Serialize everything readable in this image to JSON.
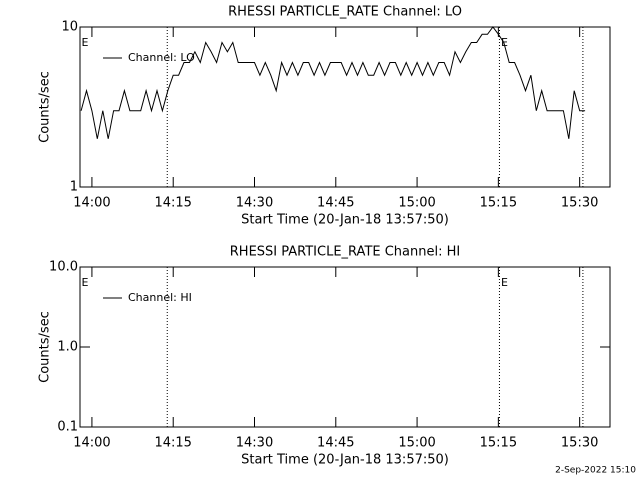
{
  "chart_data": [
    {
      "type": "line",
      "title": "RHESSI PARTICLE_RATE Channel: LO",
      "x_label": "Start Time (20-Jan-18 13:57:50)",
      "y_label": "Counts/sec",
      "xlim": [
        837.8,
        935.6
      ],
      "xticks": [
        {
          "value": 840,
          "label": "14:00"
        },
        {
          "value": 855,
          "label": "14:15"
        },
        {
          "value": 870,
          "label": "14:30"
        },
        {
          "value": 885,
          "label": "14:45"
        },
        {
          "value": 900,
          "label": "15:00"
        },
        {
          "value": 915,
          "label": "15:15"
        },
        {
          "value": 930,
          "label": "15:30"
        }
      ],
      "ylim": [
        1,
        10
      ],
      "yticks": [
        1,
        10
      ],
      "log_y": true,
      "vlines": [
        853.9,
        915.2,
        930.6
      ],
      "annotations": [
        "E",
        "E"
      ],
      "legend": "upper left",
      "series": [
        {
          "name": "Channel: LO",
          "color": "#000000",
          "x": [
            838,
            839,
            840,
            841,
            842,
            843,
            844,
            845,
            846,
            847,
            848,
            849,
            850,
            851,
            852,
            853,
            854,
            855,
            856,
            857,
            858,
            859,
            860,
            861,
            862,
            863,
            864,
            865,
            866,
            867,
            868,
            869,
            870,
            871,
            872,
            873,
            874,
            875,
            876,
            877,
            878,
            879,
            880,
            881,
            882,
            883,
            884,
            885,
            886,
            887,
            888,
            889,
            890,
            891,
            892,
            893,
            894,
            895,
            896,
            897,
            898,
            899,
            900,
            901,
            902,
            903,
            904,
            905,
            906,
            907,
            908,
            909,
            910,
            911,
            912,
            913,
            914,
            915,
            916,
            917,
            918,
            919,
            920,
            921,
            922,
            923,
            924,
            925,
            926,
            927,
            928,
            929,
            930,
            931
          ],
          "values": [
            3,
            4,
            3,
            2,
            3,
            2,
            3,
            3,
            4,
            3,
            3,
            3,
            4,
            3,
            4,
            3,
            4,
            5,
            5,
            6,
            6,
            7,
            6,
            8,
            7,
            6,
            8,
            7,
            8,
            6,
            6,
            6,
            6,
            5,
            6,
            5,
            4,
            6,
            5,
            6,
            5,
            6,
            6,
            5,
            6,
            5,
            6,
            6,
            6,
            5,
            6,
            5,
            6,
            5,
            5,
            6,
            5,
            6,
            6,
            5,
            6,
            5,
            6,
            5,
            6,
            5,
            6,
            6,
            5,
            7,
            6,
            7,
            8,
            8,
            9,
            9,
            10,
            9,
            8,
            6,
            6,
            5,
            4,
            5,
            3,
            4,
            3,
            3,
            3,
            3,
            2,
            4,
            3,
            3
          ]
        }
      ]
    },
    {
      "type": "line",
      "title": "RHESSI PARTICLE_RATE Channel: HI",
      "x_label": "Start Time (20-Jan-18 13:57:50)",
      "y_label": "Counts/sec",
      "xlim": [
        837.8,
        935.6
      ],
      "xticks": [
        {
          "value": 840,
          "label": "14:00"
        },
        {
          "value": 855,
          "label": "14:15"
        },
        {
          "value": 870,
          "label": "14:30"
        },
        {
          "value": 885,
          "label": "14:45"
        },
        {
          "value": 900,
          "label": "15:00"
        },
        {
          "value": 915,
          "label": "15:15"
        },
        {
          "value": 930,
          "label": "15:30"
        }
      ],
      "ylim": [
        0.1,
        10
      ],
      "yticks": [
        0.1,
        {
          "value": 1,
          "label": "1.0"
        },
        {
          "value": 10,
          "label": "10.0"
        }
      ],
      "log_y": true,
      "vlines": [
        853.9,
        915.2,
        930.6
      ],
      "annotations": [
        "E",
        "E"
      ],
      "legend": "upper left",
      "series": [
        {
          "name": "Channel: HI",
          "color": "#000000",
          "x": [],
          "values": []
        }
      ]
    }
  ],
  "footer": "2-Sep-2022 15:10"
}
